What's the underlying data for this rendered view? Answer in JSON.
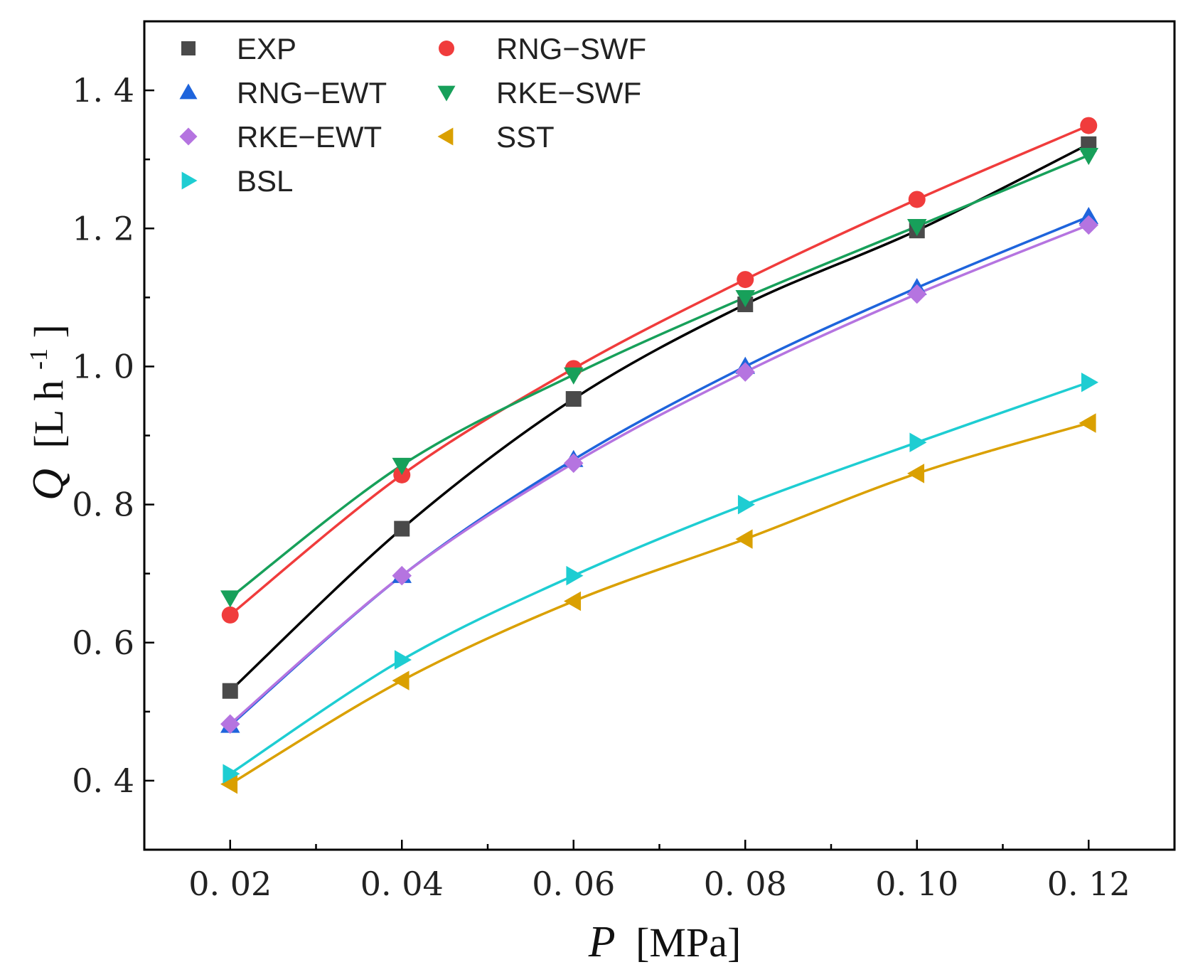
{
  "chart_data": {
    "type": "scatter",
    "title": "",
    "xlabel": {
      "symbol": "P",
      "unit": "[MPa]"
    },
    "ylabel": {
      "symbol": "Q",
      "unit_prefix": "[L h",
      "unit_sup": "-1",
      "unit_suffix": "]"
    },
    "xlim": [
      0.01,
      0.13
    ],
    "ylim": [
      0.3,
      1.5
    ],
    "xticks": [
      0.02,
      0.04,
      0.06,
      0.08,
      0.1,
      0.12
    ],
    "xtick_labels": [
      "0. 02",
      "0. 04",
      "0. 06",
      "0. 08",
      "0. 10",
      "0. 12"
    ],
    "yticks": [
      0.4,
      0.6,
      0.8,
      1.0,
      1.2,
      1.4
    ],
    "ytick_labels": [
      "0. 4",
      "0. 6",
      "0. 8",
      "1. 0",
      "1. 2",
      "1. 4"
    ],
    "legend_position": "top-left",
    "x": [
      0.02,
      0.04,
      0.06,
      0.08,
      0.1,
      0.12
    ],
    "series": [
      {
        "name": "EXP",
        "marker": "square",
        "color": "#4a4a4a",
        "line_color": "#000000",
        "values": [
          0.53,
          0.765,
          0.953,
          1.09,
          1.197,
          1.322
        ]
      },
      {
        "name": "RNG−SWF",
        "marker": "circle",
        "color": "#f03c3c",
        "line_color": "#f03c3c",
        "values": [
          0.64,
          0.843,
          0.997,
          1.126,
          1.242,
          1.349
        ]
      },
      {
        "name": "RNG−EWT",
        "marker": "triangle-up",
        "color": "#1e64dc",
        "line_color": "#1e64dc",
        "values": [
          0.48,
          0.697,
          0.865,
          1.0,
          1.114,
          1.217
        ]
      },
      {
        "name": "RKE−SWF",
        "marker": "triangle-down",
        "color": "#17a05a",
        "line_color": "#17a05a",
        "values": [
          0.665,
          0.857,
          0.988,
          1.1,
          1.203,
          1.306
        ]
      },
      {
        "name": "RKE−EWT",
        "marker": "diamond",
        "color": "#b574e0",
        "line_color": "#b574e0",
        "values": [
          0.482,
          0.697,
          0.86,
          0.992,
          1.105,
          1.205
        ]
      },
      {
        "name": "SST",
        "marker": "triangle-left",
        "color": "#daa000",
        "line_color": "#daa000",
        "values": [
          0.395,
          0.545,
          0.66,
          0.75,
          0.845,
          0.918
        ]
      },
      {
        "name": "BSL",
        "marker": "triangle-right",
        "color": "#1ecdd2",
        "line_color": "#1ecdd2",
        "values": [
          0.41,
          0.575,
          0.697,
          0.8,
          0.89,
          0.977
        ]
      }
    ]
  }
}
